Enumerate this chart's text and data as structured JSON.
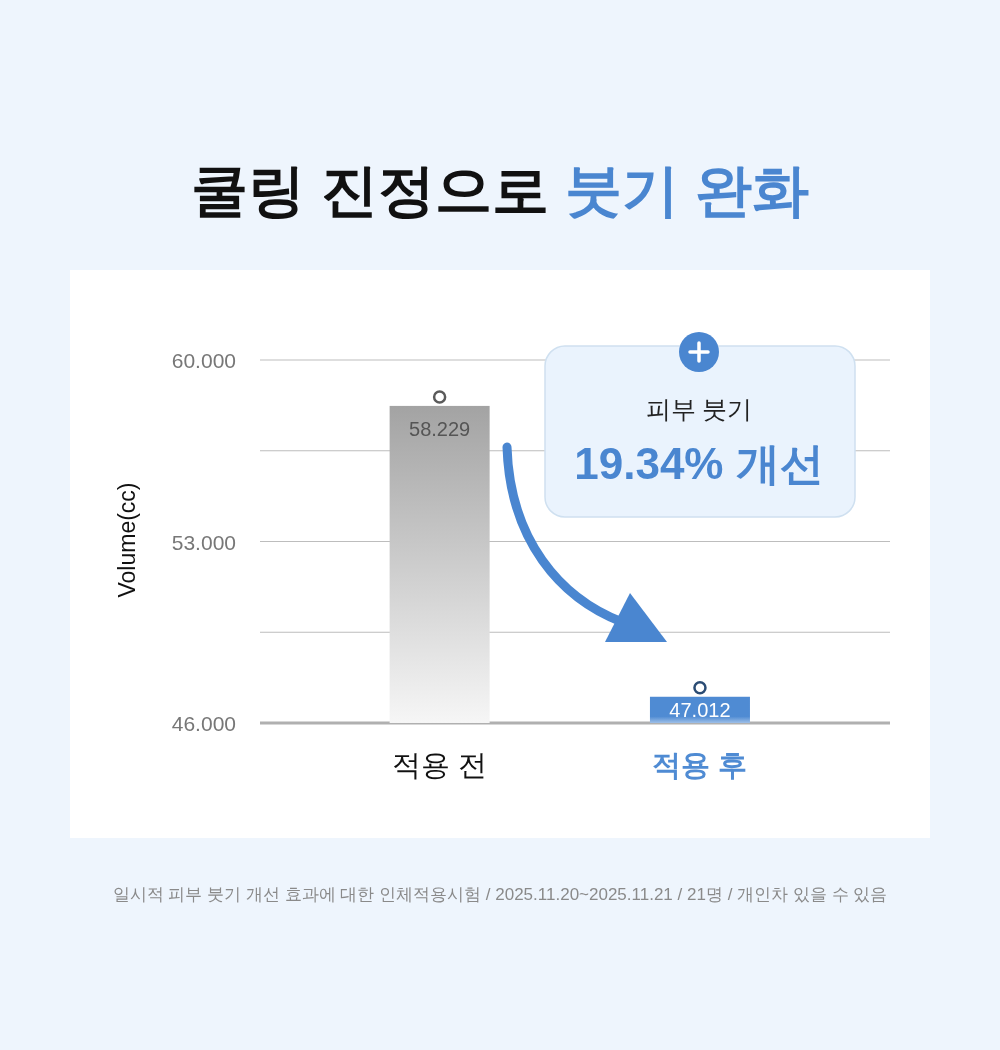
{
  "chart_data": {
    "type": "bar",
    "title": "쿨링 진정으로 붓기 완화",
    "ylabel": "Volume(cc)",
    "categories": [
      "적용 전",
      "적용 후"
    ],
    "values": [
      58.229,
      47.012
    ],
    "colors": [
      "#a3a3a3",
      "#4f8bd3"
    ],
    "ylim": [
      46,
      60
    ],
    "yticks": [
      {
        "value": 46,
        "label": "46.000"
      },
      {
        "value": 49.5,
        "label": null
      },
      {
        "value": 53,
        "label": "53.000"
      },
      {
        "value": 56.5,
        "label": null
      },
      {
        "value": 60,
        "label": "60.000"
      }
    ],
    "grid": "y",
    "data_labels": true,
    "annotations": [
      "피부 붓기",
      "19.34% 개선",
      "일시적 피부 붓기 개선 효과에 대한 인체적용시험 / 2025.11.20~2025.11.21 / 21명 / 개인차 있을 수 있음"
    ]
  }
}
